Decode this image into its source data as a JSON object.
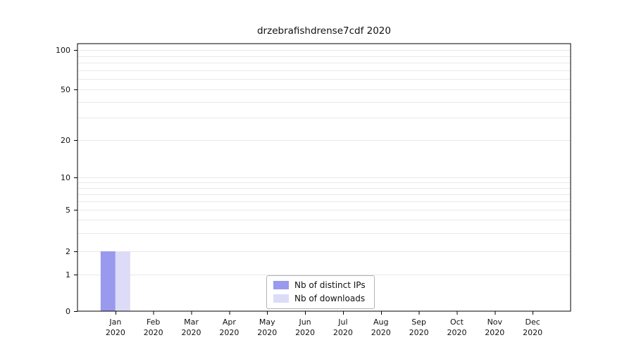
{
  "chart_data": {
    "type": "bar",
    "title": "drzebrafishdrense7cdf 2020",
    "year": "2020",
    "categories": [
      "Jan",
      "Feb",
      "Mar",
      "Apr",
      "May",
      "Jun",
      "Jul",
      "Aug",
      "Sep",
      "Oct",
      "Nov",
      "Dec"
    ],
    "series": [
      {
        "name": "Nb of distinct IPs",
        "color": "#9999ee",
        "values": [
          2,
          0,
          0,
          0,
          0,
          0,
          0,
          0,
          0,
          0,
          0,
          0
        ]
      },
      {
        "name": "Nb of downloads",
        "color": "#dcdcf8",
        "values": [
          2,
          0,
          0,
          0,
          0,
          0,
          0,
          0,
          0,
          0,
          0,
          0
        ]
      }
    ],
    "yticks": [
      0,
      1,
      2,
      5,
      10,
      20,
      50,
      100
    ],
    "ylim": [
      0,
      112
    ],
    "scale": "symlog",
    "grid": true,
    "legend_position": "bottom-center",
    "axis_color": "#000000",
    "grid_color": "#e9e9e9"
  }
}
